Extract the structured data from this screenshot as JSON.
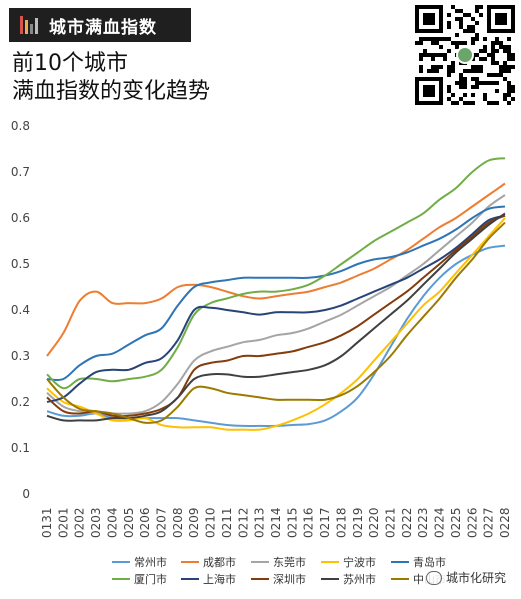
{
  "header": {
    "tag_title": "城市满血指数",
    "subtitle_line1": "前10个城市",
    "subtitle_line2": "满血指数的变化趋势"
  },
  "watermark": {
    "text": "城市化研究"
  },
  "colors": {
    "tag_bars": [
      "#d9534f",
      "#f0ad4e",
      "#8a8a8a",
      "#bbbbbb"
    ]
  },
  "chart_data": {
    "type": "line",
    "title": "",
    "xlabel": "",
    "ylabel": "",
    "ylim": [
      0,
      0.8
    ],
    "yticks": [
      "0",
      "0.1",
      "0.2",
      "0.3",
      "0.4",
      "0.5",
      "0.6",
      "0.7",
      "0.8"
    ],
    "grid": false,
    "legend": "bottom",
    "categories": [
      "0131",
      "0201",
      "0202",
      "0203",
      "0204",
      "0205",
      "0206",
      "0207",
      "0208",
      "0209",
      "0210",
      "0211",
      "0212",
      "0213",
      "0214",
      "0215",
      "0216",
      "0217",
      "0218",
      "0219",
      "0220",
      "0221",
      "0222",
      "0223",
      "0224",
      "0225",
      "0226",
      "0227",
      "0228"
    ],
    "series": [
      {
        "name": "常州市",
        "color": "#5b9bd5",
        "values": [
          0.18,
          0.17,
          0.17,
          0.175,
          0.165,
          0.165,
          0.165,
          0.165,
          0.165,
          0.16,
          0.155,
          0.15,
          0.148,
          0.148,
          0.148,
          0.15,
          0.152,
          0.16,
          0.18,
          0.21,
          0.26,
          0.32,
          0.38,
          0.43,
          0.47,
          0.5,
          0.52,
          0.535,
          0.54
        ]
      },
      {
        "name": "成都市",
        "color": "#ed7d31",
        "values": [
          0.3,
          0.35,
          0.42,
          0.44,
          0.415,
          0.415,
          0.415,
          0.425,
          0.45,
          0.455,
          0.45,
          0.44,
          0.43,
          0.425,
          0.43,
          0.435,
          0.44,
          0.45,
          0.46,
          0.475,
          0.49,
          0.51,
          0.53,
          0.555,
          0.58,
          0.6,
          0.625,
          0.65,
          0.675
        ]
      },
      {
        "name": "东莞市",
        "color": "#a5a5a5",
        "values": [
          0.22,
          0.19,
          0.18,
          0.175,
          0.175,
          0.175,
          0.18,
          0.2,
          0.24,
          0.29,
          0.31,
          0.32,
          0.33,
          0.335,
          0.345,
          0.35,
          0.36,
          0.375,
          0.39,
          0.41,
          0.43,
          0.45,
          0.475,
          0.5,
          0.53,
          0.56,
          0.59,
          0.625,
          0.65
        ]
      },
      {
        "name": "宁波市",
        "color": "#ffc000",
        "values": [
          0.23,
          0.2,
          0.19,
          0.175,
          0.16,
          0.16,
          0.165,
          0.15,
          0.145,
          0.145,
          0.145,
          0.14,
          0.14,
          0.14,
          0.148,
          0.16,
          0.175,
          0.195,
          0.22,
          0.25,
          0.29,
          0.33,
          0.37,
          0.41,
          0.44,
          0.48,
          0.52,
          0.56,
          0.6
        ]
      },
      {
        "name": "青岛市",
        "color": "#2e75b6",
        "values": [
          0.25,
          0.25,
          0.28,
          0.3,
          0.305,
          0.325,
          0.345,
          0.36,
          0.41,
          0.45,
          0.46,
          0.465,
          0.47,
          0.47,
          0.47,
          0.47,
          0.47,
          0.475,
          0.485,
          0.5,
          0.51,
          0.515,
          0.525,
          0.54,
          0.555,
          0.575,
          0.6,
          0.62,
          0.625
        ]
      },
      {
        "name": "厦门市",
        "color": "#70ad47",
        "values": [
          0.26,
          0.23,
          0.25,
          0.25,
          0.245,
          0.25,
          0.255,
          0.27,
          0.32,
          0.39,
          0.415,
          0.425,
          0.435,
          0.44,
          0.44,
          0.445,
          0.455,
          0.475,
          0.5,
          0.525,
          0.55,
          0.57,
          0.59,
          0.61,
          0.64,
          0.665,
          0.7,
          0.725,
          0.73
        ]
      },
      {
        "name": "上海市",
        "color": "#264478",
        "values": [
          0.2,
          0.21,
          0.24,
          0.265,
          0.27,
          0.27,
          0.285,
          0.295,
          0.335,
          0.4,
          0.405,
          0.4,
          0.395,
          0.39,
          0.395,
          0.395,
          0.395,
          0.4,
          0.41,
          0.425,
          0.44,
          0.455,
          0.47,
          0.49,
          0.51,
          0.535,
          0.565,
          0.595,
          0.605
        ]
      },
      {
        "name": "深圳市",
        "color": "#843c0c",
        "values": [
          0.21,
          0.18,
          0.175,
          0.18,
          0.17,
          0.17,
          0.175,
          0.185,
          0.21,
          0.27,
          0.285,
          0.29,
          0.3,
          0.3,
          0.305,
          0.31,
          0.32,
          0.33,
          0.345,
          0.365,
          0.39,
          0.415,
          0.44,
          0.47,
          0.5,
          0.53,
          0.56,
          0.59,
          0.605
        ]
      },
      {
        "name": "苏州市",
        "color": "#404040",
        "values": [
          0.17,
          0.16,
          0.16,
          0.16,
          0.165,
          0.165,
          0.17,
          0.18,
          0.21,
          0.25,
          0.26,
          0.26,
          0.255,
          0.255,
          0.26,
          0.265,
          0.27,
          0.28,
          0.3,
          0.33,
          0.36,
          0.39,
          0.42,
          0.455,
          0.49,
          0.525,
          0.555,
          0.585,
          0.61
        ]
      },
      {
        "name": "中山市",
        "color": "#9c7a00",
        "values": [
          0.25,
          0.21,
          0.185,
          0.18,
          0.175,
          0.165,
          0.155,
          0.16,
          0.19,
          0.23,
          0.23,
          0.22,
          0.215,
          0.21,
          0.205,
          0.205,
          0.205,
          0.205,
          0.215,
          0.235,
          0.265,
          0.3,
          0.345,
          0.385,
          0.425,
          0.47,
          0.51,
          0.555,
          0.59
        ]
      }
    ]
  }
}
